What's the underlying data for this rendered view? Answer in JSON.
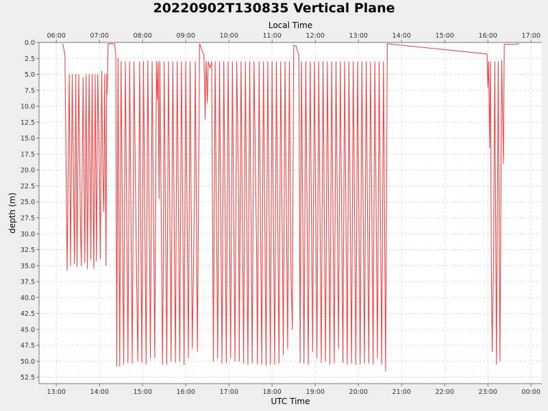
{
  "chart_data": {
    "type": "line",
    "title": "20220902T130835 Vertical Plane",
    "xlabel": "UTC Time",
    "x2label": "Local Time",
    "ylabel": "depth (m)",
    "x_unit": "hours UTC (2022-09-02)",
    "xlim": [
      12.6,
      24.25
    ],
    "ylim": [
      0.0,
      53.5
    ],
    "y_inverted": true,
    "grid": true,
    "line_color": "#f44444",
    "x_ticks": [
      "13:00",
      "14:00",
      "15:00",
      "16:00",
      "17:00",
      "18:00",
      "19:00",
      "20:00",
      "21:00",
      "22:00",
      "23:00",
      "00:00"
    ],
    "x2_ticks": [
      "06:00",
      "07:00",
      "08:00",
      "09:00",
      "10:00",
      "11:00",
      "12:00",
      "13:00",
      "14:00",
      "15:00",
      "16:00",
      "17:00"
    ],
    "y_ticks": [
      "0.0",
      "2.5",
      "5.0",
      "7.5",
      "10.0",
      "12.5",
      "15.0",
      "17.5",
      "20.0",
      "22.5",
      "25.0",
      "27.5",
      "30.0",
      "32.5",
      "35.0",
      "37.5",
      "40.0",
      "42.5",
      "45.0",
      "47.5",
      "50.0",
      "52.5"
    ],
    "series": [
      {
        "points": [
          [
            13.15,
            0.2
          ],
          [
            13.2,
            2
          ],
          [
            13.25,
            35.8
          ],
          [
            13.3,
            5
          ],
          [
            13.32,
            24.5
          ],
          [
            13.33,
            35
          ],
          [
            13.37,
            5
          ],
          [
            13.42,
            34.7
          ],
          [
            13.45,
            5
          ],
          [
            13.48,
            35.2
          ],
          [
            13.5,
            20
          ],
          [
            13.52,
            5
          ],
          [
            13.56,
            29
          ],
          [
            13.58,
            35
          ],
          [
            13.62,
            5.5
          ],
          [
            13.66,
            34.5
          ],
          [
            13.69,
            5
          ],
          [
            13.72,
            35.5
          ],
          [
            13.76,
            5
          ],
          [
            13.8,
            34
          ],
          [
            13.83,
            5
          ],
          [
            13.87,
            35.5
          ],
          [
            13.9,
            5
          ],
          [
            13.93,
            34.3
          ],
          [
            13.96,
            5
          ],
          [
            14.0,
            20
          ],
          [
            14.02,
            34
          ],
          [
            14.05,
            4.5
          ],
          [
            14.08,
            21
          ],
          [
            14.1,
            26.5
          ],
          [
            14.12,
            5
          ],
          [
            14.15,
            35
          ],
          [
            14.17,
            5
          ],
          [
            14.18,
            8
          ],
          [
            14.2,
            0.2
          ],
          [
            14.35,
            0.2
          ],
          [
            14.38,
            2
          ],
          [
            14.4,
            50.8
          ],
          [
            14.43,
            2.5
          ],
          [
            14.47,
            50.8
          ],
          [
            14.5,
            3
          ],
          [
            14.56,
            50.5
          ],
          [
            14.6,
            3
          ],
          [
            14.66,
            50.2
          ],
          [
            14.7,
            3
          ],
          [
            14.76,
            50.3
          ],
          [
            14.8,
            3
          ],
          [
            14.86,
            37
          ],
          [
            14.89,
            50
          ],
          [
            14.93,
            3
          ],
          [
            14.98,
            50.2
          ],
          [
            15.02,
            3
          ],
          [
            15.08,
            50.5
          ],
          [
            15.12,
            2.8
          ],
          [
            15.18,
            49.5
          ],
          [
            15.22,
            3
          ],
          [
            15.26,
            33
          ],
          [
            15.28,
            49.5
          ],
          [
            15.32,
            3
          ],
          [
            15.34,
            9
          ],
          [
            15.36,
            3
          ],
          [
            15.38,
            24.5
          ],
          [
            15.4,
            3
          ],
          [
            15.44,
            33
          ],
          [
            15.46,
            50.5
          ],
          [
            15.48,
            34.5
          ],
          [
            15.5,
            3
          ],
          [
            15.56,
            50.5
          ],
          [
            15.6,
            3
          ],
          [
            15.66,
            50
          ],
          [
            15.7,
            3
          ],
          [
            15.76,
            50.2
          ],
          [
            15.8,
            3
          ],
          [
            15.86,
            50
          ],
          [
            15.9,
            3
          ],
          [
            15.96,
            50.5
          ],
          [
            16.0,
            3
          ],
          [
            16.06,
            49.5
          ],
          [
            16.1,
            3
          ],
          [
            16.15,
            48
          ],
          [
            16.2,
            25
          ],
          [
            16.22,
            3
          ],
          [
            16.27,
            48.5
          ],
          [
            16.32,
            0.2
          ],
          [
            16.42,
            2
          ],
          [
            16.45,
            12
          ],
          [
            16.47,
            3
          ],
          [
            16.5,
            9.5
          ],
          [
            16.52,
            3
          ],
          [
            16.56,
            4
          ],
          [
            16.6,
            3
          ],
          [
            16.64,
            50
          ],
          [
            16.68,
            3
          ],
          [
            16.74,
            49.5
          ],
          [
            16.78,
            3
          ],
          [
            16.84,
            50.3
          ],
          [
            16.88,
            3
          ],
          [
            16.94,
            50.3
          ],
          [
            16.98,
            3
          ],
          [
            17.04,
            49.5
          ],
          [
            17.08,
            3
          ],
          [
            17.12,
            34
          ],
          [
            17.14,
            50
          ],
          [
            17.18,
            3
          ],
          [
            17.22,
            22
          ],
          [
            17.24,
            50
          ],
          [
            17.28,
            3
          ],
          [
            17.34,
            50.3
          ],
          [
            17.38,
            3
          ],
          [
            17.44,
            50.5
          ],
          [
            17.48,
            3
          ],
          [
            17.54,
            50.3
          ],
          [
            17.58,
            3
          ],
          [
            17.64,
            32
          ],
          [
            17.66,
            50.5
          ],
          [
            17.7,
            3
          ],
          [
            17.76,
            50.5
          ],
          [
            17.8,
            3
          ],
          [
            17.86,
            50.7
          ],
          [
            17.9,
            3
          ],
          [
            17.96,
            50.5
          ],
          [
            18.0,
            3
          ],
          [
            18.06,
            50.5
          ],
          [
            18.1,
            3
          ],
          [
            18.16,
            50.3
          ],
          [
            18.2,
            3
          ],
          [
            18.26,
            49
          ],
          [
            18.3,
            3
          ],
          [
            18.36,
            48
          ],
          [
            18.4,
            3
          ],
          [
            18.44,
            37
          ],
          [
            18.47,
            45
          ],
          [
            18.5,
            0.5
          ],
          [
            18.55,
            0.5
          ],
          [
            18.62,
            2
          ],
          [
            18.65,
            50.2
          ],
          [
            18.68,
            3
          ],
          [
            18.74,
            50.3
          ],
          [
            18.78,
            3
          ],
          [
            18.84,
            50.5
          ],
          [
            18.88,
            3
          ],
          [
            18.94,
            48.5
          ],
          [
            18.98,
            3
          ],
          [
            19.04,
            49.5
          ],
          [
            19.08,
            3
          ],
          [
            19.14,
            50.2
          ],
          [
            19.18,
            3
          ],
          [
            19.24,
            50
          ],
          [
            19.28,
            3
          ],
          [
            19.34,
            50.5
          ],
          [
            19.38,
            3
          ],
          [
            19.44,
            50.3
          ],
          [
            19.48,
            3
          ],
          [
            19.54,
            48
          ],
          [
            19.58,
            3
          ],
          [
            19.64,
            50.2
          ],
          [
            19.68,
            3
          ],
          [
            19.74,
            50.5
          ],
          [
            19.78,
            3
          ],
          [
            19.84,
            50.3
          ],
          [
            19.88,
            3
          ],
          [
            19.94,
            50.5
          ],
          [
            19.98,
            3
          ],
          [
            20.04,
            50.5
          ],
          [
            20.08,
            3
          ],
          [
            20.14,
            50.3
          ],
          [
            20.18,
            3
          ],
          [
            20.24,
            50.3
          ],
          [
            20.28,
            3
          ],
          [
            20.34,
            50.5
          ],
          [
            20.38,
            3
          ],
          [
            20.44,
            49.5
          ],
          [
            20.48,
            3
          ],
          [
            20.54,
            50.5
          ],
          [
            20.58,
            3
          ],
          [
            20.63,
            51.5
          ],
          [
            20.67,
            0.2
          ],
          [
            22.98,
            1.8
          ],
          [
            23.0,
            7
          ],
          [
            23.02,
            3
          ],
          [
            23.04,
            16.5
          ],
          [
            23.06,
            3
          ],
          [
            23.08,
            35.5
          ],
          [
            23.1,
            48.5
          ],
          [
            23.13,
            35
          ],
          [
            23.16,
            3
          ],
          [
            23.2,
            50.5
          ],
          [
            23.24,
            3
          ],
          [
            23.28,
            50
          ],
          [
            23.32,
            2.8
          ],
          [
            23.36,
            19
          ],
          [
            23.38,
            0.3
          ],
          [
            23.6,
            0.3
          ],
          [
            23.72,
            0.2
          ]
        ]
      }
    ]
  }
}
